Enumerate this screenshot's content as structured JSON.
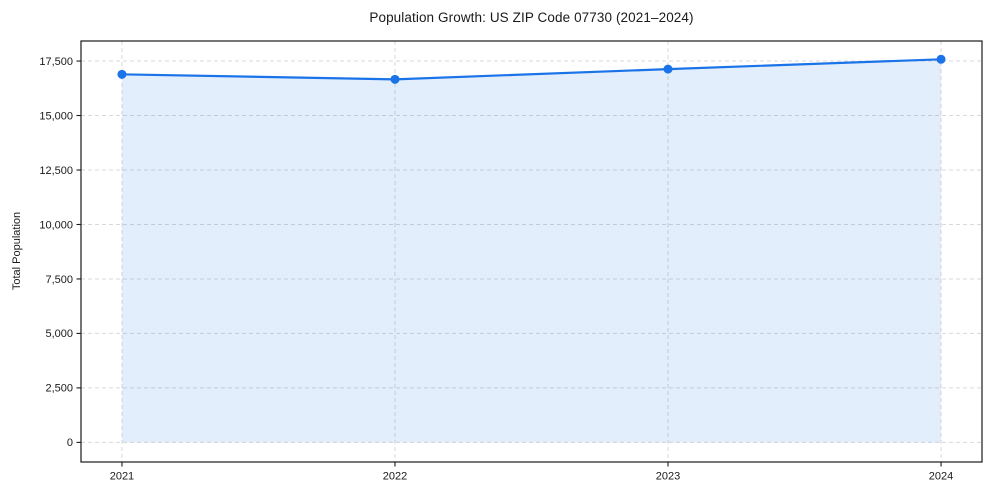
{
  "chart_data": {
    "type": "area",
    "title": "Population Growth: US ZIP Code 07730 (2021–2024)",
    "xlabel": "",
    "ylabel": "Total Population",
    "categories": [
      "2021",
      "2022",
      "2023",
      "2024"
    ],
    "x": [
      2021,
      2022,
      2023,
      2024
    ],
    "series": [
      {
        "name": "Total Population",
        "values": [
          16890,
          16660,
          17130,
          17580
        ]
      }
    ],
    "xlim": [
      2020.85,
      2024.15
    ],
    "ylim": [
      -900,
      18420
    ],
    "yticks": [
      0,
      2500,
      5000,
      7500,
      10000,
      12500,
      15000,
      17500
    ],
    "ytick_labels": [
      "0",
      "2,500",
      "5,000",
      "7,500",
      "10,000",
      "12,500",
      "15,000",
      "17,500"
    ],
    "grid": true,
    "grid_style": "dashed",
    "legend_position": "none",
    "fill_baseline": 0,
    "colors": {
      "line": "#1a73e8",
      "marker": "#1a73e8",
      "fill": "#1a73e8",
      "fill_opacity": 0.12,
      "grid": "#d9d9d9",
      "spine": "#1a1a1a",
      "text": "#1a1a1a",
      "background": "#ffffff"
    }
  }
}
